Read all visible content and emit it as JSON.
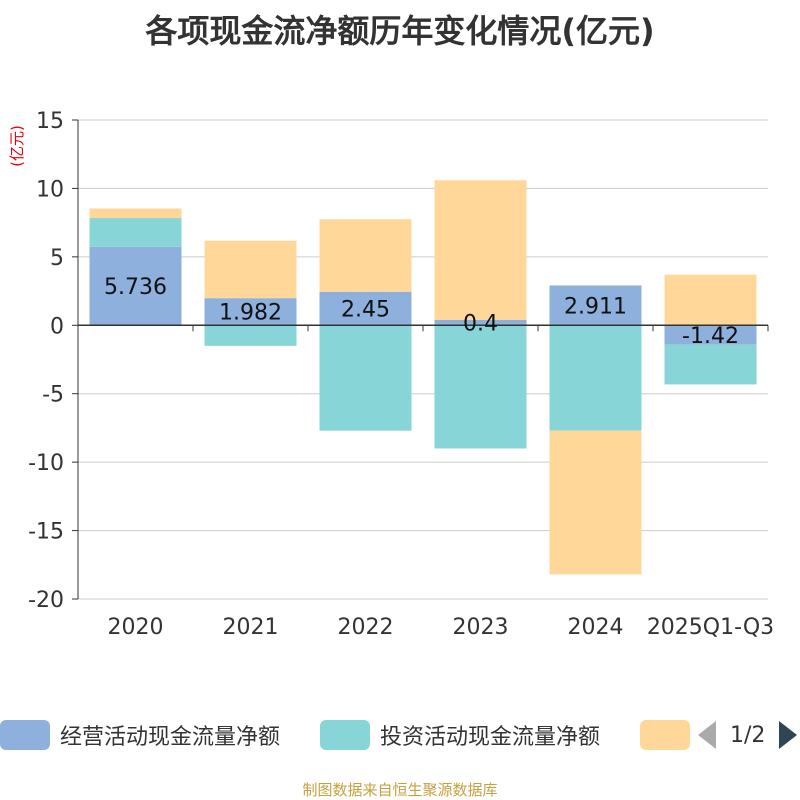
{
  "title": "各项现金流净额历年变化情况(亿元)",
  "source": "制图数据来自恒生聚源数据库",
  "legend_pager": {
    "page_text": "1/2"
  },
  "chart_data": {
    "type": "bar",
    "stacked": true,
    "title": "各项现金流净额历年变化情况(亿元)",
    "ylabel": "(亿元)",
    "ylabel_color": "#e8000b",
    "ylim": [
      -20,
      15
    ],
    "yticks": [
      15,
      10,
      5,
      0,
      -5,
      -10,
      -15,
      -20
    ],
    "ytick_labels": [
      "15",
      "10",
      "5",
      "0",
      "-5",
      "-10",
      "-15",
      "-20"
    ],
    "grid": true,
    "categories": [
      "2020",
      "2021",
      "2022",
      "2023",
      "2024",
      "2025Q1-Q3"
    ],
    "series": [
      {
        "name": "经营活动现金流量净额",
        "color": "#8eb0dc",
        "values": [
          5.736,
          1.982,
          2.45,
          0.4,
          2.911,
          -1.42
        ],
        "labels": [
          "5.736",
          "1.982",
          "2.45",
          "0.4",
          "2.911",
          "-1.42"
        ]
      },
      {
        "name": "投资活动现金流量净额",
        "color": "#87d5d7",
        "values": [
          2.1,
          -1.5,
          -7.7,
          -9.0,
          -7.7,
          -2.9
        ]
      },
      {
        "name": "",
        "color": "#ffd899",
        "values": [
          0.7,
          4.2,
          5.3,
          10.2,
          -10.5,
          3.7
        ]
      }
    ]
  }
}
